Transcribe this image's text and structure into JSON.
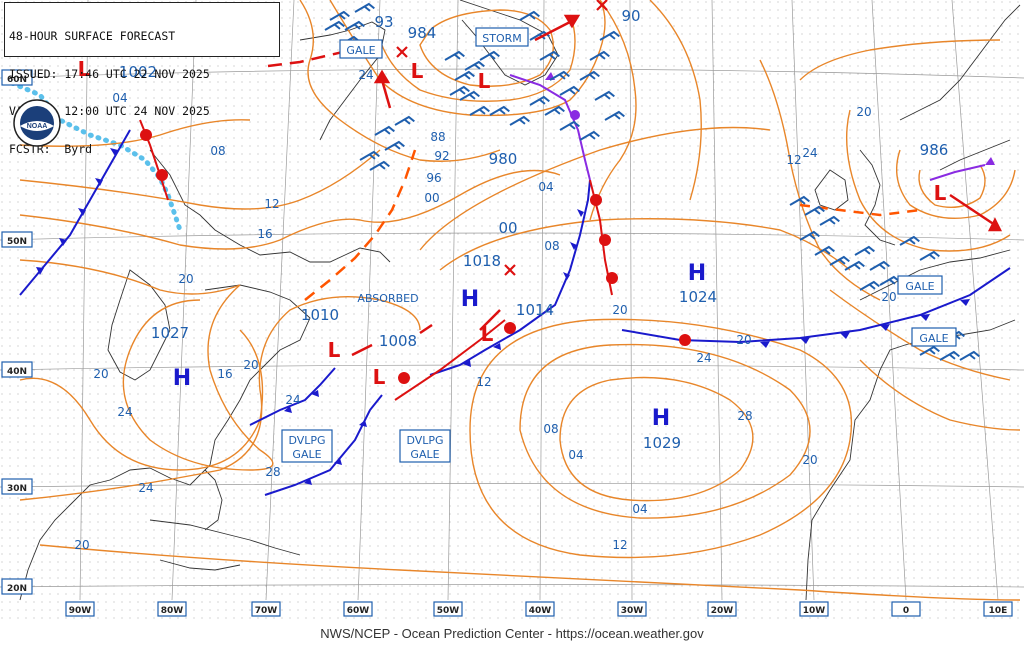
{
  "header": {
    "line1": "48-HOUR SURFACE FORECAST",
    "line2": "ISSUED: 17:46 UTC 22 NOV 2025",
    "line3": "VALID:  12:00 UTC 24 NOV 2025",
    "line4": "FCSTR:  Byrd"
  },
  "logo_text": "NOAA",
  "footer": "NWS/NCEP - Ocean Prediction Center - https://ocean.weather.gov",
  "lat_labels": [
    "60N",
    "50N",
    "40N",
    "30N",
    "20N"
  ],
  "lon_labels": [
    "90W",
    "80W",
    "70W",
    "60W",
    "50W",
    "40W",
    "30W",
    "20W",
    "10W",
    "0",
    "10E"
  ],
  "pressure_labels": [
    {
      "id": "p1002",
      "text": "1002"
    },
    {
      "id": "p93",
      "text": "93"
    },
    {
      "id": "p984",
      "text": "984"
    },
    {
      "id": "p90",
      "text": "90"
    },
    {
      "id": "p980",
      "text": "980"
    },
    {
      "id": "p00a",
      "text": "00"
    },
    {
      "id": "p1018",
      "text": "1018"
    },
    {
      "id": "p1014",
      "text": "1014"
    },
    {
      "id": "p1010",
      "text": "1010"
    },
    {
      "id": "p1008",
      "text": "1008"
    },
    {
      "id": "p1027",
      "text": "1027"
    },
    {
      "id": "p1024",
      "text": "1024"
    },
    {
      "id": "p1029",
      "text": "1029"
    },
    {
      "id": "p986",
      "text": "986"
    }
  ],
  "isobar_labels": [
    "04",
    "08",
    "12",
    "16",
    "20",
    "24",
    "88",
    "92",
    "96",
    "00",
    "04",
    "08",
    "12",
    "20",
    "24",
    "28",
    "24",
    "20",
    "16",
    "20",
    "24",
    "28",
    "24",
    "20",
    "12",
    "08",
    "04",
    "04",
    "12",
    "20",
    "20",
    "24",
    "20",
    "20"
  ],
  "warnings": {
    "gale1": "GALE",
    "storm": "STORM",
    "gale2": "GALE",
    "gale3": "GALE",
    "dvlpg1a": "DVLPG",
    "dvlpg1b": "GALE",
    "dvlpg2a": "DVLPG",
    "dvlpg2b": "GALE"
  },
  "absorbed": "ABSORBED",
  "high_letter": "H",
  "low_letter": "L",
  "colors": {
    "isobar": "#e8862a",
    "coast": "#333333",
    "cold_front": "#1a1acc",
    "warm_front": "#dd1111",
    "occluded": "#8a2be2",
    "wind": "#1f5fae",
    "label": "#1f5fae",
    "ice": "#5bc0eb",
    "grid": "#9a9a9a"
  }
}
